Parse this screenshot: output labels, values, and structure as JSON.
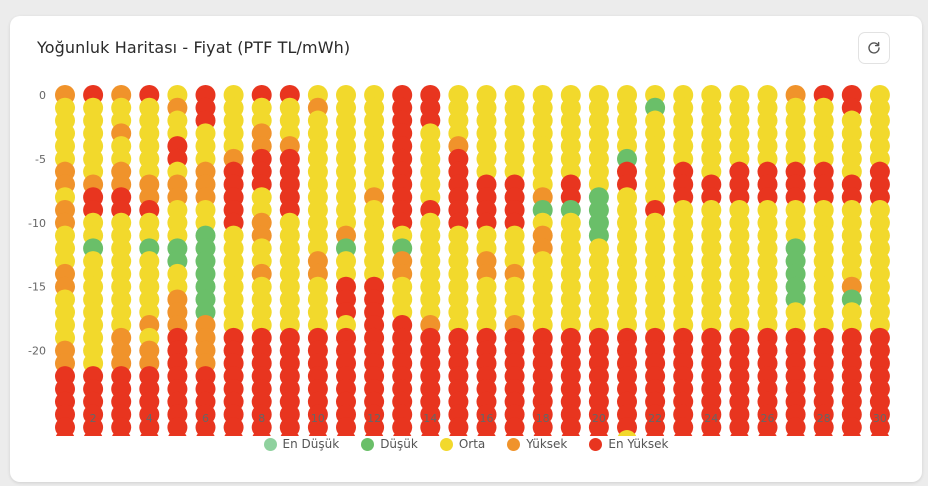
{
  "card": {
    "title": "Yoğunluk Haritası - Fiyat (PTF TL/mWh)",
    "refresh_icon": "refresh-icon"
  },
  "legend": [
    {
      "label": "En Düşük",
      "color": "#8fd19e"
    },
    {
      "label": "Düşük",
      "color": "#6abf69"
    },
    {
      "label": "Orta",
      "color": "#f2d92c"
    },
    {
      "label": "Yüksek",
      "color": "#f0932b"
    },
    {
      "label": "En Yüksek",
      "color": "#e8351f"
    }
  ],
  "chart_data": {
    "type": "heatmap",
    "title": "Yoğunluk Haritası - Fiyat (PTF TL/mWh)",
    "x_ticks": [
      2,
      4,
      6,
      8,
      10,
      12,
      14,
      16,
      18,
      20,
      22,
      24,
      26,
      28,
      30
    ],
    "y_ticks": [
      0,
      -5,
      -10,
      -15,
      -20
    ],
    "x_range": [
      1,
      30
    ],
    "y_range": [
      -23,
      0
    ],
    "levels": [
      "En Düşük",
      "Düşük",
      "Orta",
      "Yüksek",
      "En Yüksek"
    ],
    "days": [
      [
        "Y",
        "O",
        "O",
        "O",
        "O",
        "O",
        "Y",
        "Y",
        "O",
        "Y",
        "Y",
        "O",
        "O",
        "O",
        "Y",
        "Y",
        "O",
        "O",
        "O",
        "O",
        "Y",
        "Y",
        "E",
        "E",
        "E",
        "E",
        "E",
        "E",
        "E",
        "O"
      ],
      [
        "E",
        "O",
        "O",
        "O",
        "O",
        "O",
        "O",
        "Y",
        "E",
        "E",
        "O",
        "O",
        "D",
        "O",
        "O",
        "O",
        "O",
        "O",
        "O",
        "O",
        "O",
        "O",
        "E",
        "E",
        "E",
        "E",
        "E",
        "E",
        "Y",
        "Y"
      ],
      [
        "Y",
        "O",
        "O",
        "Y",
        "O",
        "O",
        "Y",
        "Y",
        "E",
        "E",
        "O",
        "O",
        "O",
        "O",
        "O",
        "O",
        "O",
        "O",
        "O",
        "Y",
        "Y",
        "Y",
        "E",
        "E",
        "E",
        "E",
        "E",
        "E",
        "E",
        "Y"
      ],
      [
        "E",
        "O",
        "O",
        "O",
        "O",
        "O",
        "O",
        "Y",
        "Y",
        "E",
        "O",
        "O",
        "D",
        "O",
        "O",
        "O",
        "O",
        "O",
        "Y",
        "O",
        "Y",
        "Y",
        "E",
        "E",
        "E",
        "E",
        "E",
        "E",
        "E",
        "Y"
      ],
      [
        "O",
        "Y",
        "O",
        "O",
        "E",
        "E",
        "O",
        "Y",
        "Y",
        "O",
        "O",
        "O",
        "D",
        "D",
        "O",
        "O",
        "Y",
        "Y",
        "Y",
        "E",
        "E",
        "E",
        "E",
        "E",
        "E",
        "E",
        "E",
        "E",
        "O",
        "O"
      ],
      [
        "E",
        "E",
        "E",
        "O",
        "O",
        "O",
        "Y",
        "Y",
        "Y",
        "O",
        "O",
        "D",
        "D",
        "D",
        "D",
        "D",
        "D",
        "D",
        "Y",
        "Y",
        "Y",
        "Y",
        "E",
        "E",
        "E",
        "E",
        "E",
        "E",
        "E",
        "Y"
      ],
      [
        "O",
        "O",
        "O",
        "O",
        "O",
        "Y",
        "E",
        "E",
        "E",
        "E",
        "E",
        "O",
        "O",
        "O",
        "O",
        "O",
        "O",
        "O",
        "O",
        "E",
        "E",
        "E",
        "E",
        "E",
        "E",
        "E",
        "E",
        "E",
        "E",
        "O"
      ],
      [
        "E",
        "O",
        "O",
        "Y",
        "Y",
        "E",
        "E",
        "E",
        "O",
        "O",
        "Y",
        "Y",
        "O",
        "O",
        "Y",
        "O",
        "O",
        "O",
        "O",
        "E",
        "E",
        "E",
        "E",
        "E",
        "E",
        "E",
        "E",
        "E",
        "E",
        "O"
      ],
      [
        "E",
        "O",
        "O",
        "O",
        "Y",
        "E",
        "E",
        "E",
        "E",
        "E",
        "O",
        "O",
        "O",
        "O",
        "O",
        "O",
        "O",
        "O",
        "O",
        "E",
        "E",
        "E",
        "E",
        "E",
        "E",
        "E",
        "E",
        "E",
        "E",
        "O"
      ],
      [
        "O",
        "Y",
        "O",
        "O",
        "O",
        "O",
        "O",
        "O",
        "O",
        "O",
        "O",
        "O",
        "O",
        "Y",
        "Y",
        "O",
        "O",
        "O",
        "O",
        "E",
        "E",
        "E",
        "E",
        "E",
        "E",
        "E",
        "E",
        "E",
        "E",
        "Y"
      ],
      [
        "O",
        "O",
        "O",
        "O",
        "O",
        "O",
        "O",
        "O",
        "O",
        "O",
        "O",
        "Y",
        "D",
        "O",
        "O",
        "E",
        "E",
        "E",
        "O",
        "E",
        "E",
        "E",
        "E",
        "E",
        "E",
        "E",
        "E",
        "E",
        "E",
        "O"
      ],
      [
        "O",
        "O",
        "O",
        "O",
        "O",
        "O",
        "O",
        "O",
        "Y",
        "O",
        "O",
        "O",
        "O",
        "O",
        "O",
        "E",
        "E",
        "E",
        "E",
        "E",
        "E",
        "E",
        "E",
        "E",
        "E",
        "E",
        "E",
        "E",
        "E",
        "Y"
      ],
      [
        "E",
        "E",
        "E",
        "E",
        "E",
        "E",
        "E",
        "E",
        "E",
        "E",
        "E",
        "O",
        "D",
        "Y",
        "Y",
        "O",
        "O",
        "O",
        "E",
        "E",
        "E",
        "E",
        "E",
        "E",
        "E",
        "E",
        "E",
        "E",
        "E",
        "O"
      ],
      [
        "E",
        "E",
        "E",
        "O",
        "O",
        "O",
        "O",
        "O",
        "O",
        "E",
        "O",
        "O",
        "O",
        "O",
        "O",
        "O",
        "O",
        "O",
        "Y",
        "E",
        "E",
        "E",
        "E",
        "E",
        "E",
        "E",
        "E",
        "E",
        "E",
        "O"
      ],
      [
        "O",
        "O",
        "O",
        "O",
        "Y",
        "E",
        "E",
        "E",
        "E",
        "E",
        "E",
        "O",
        "O",
        "O",
        "O",
        "O",
        "O",
        "O",
        "O",
        "E",
        "E",
        "E",
        "E",
        "E",
        "E",
        "E",
        "E",
        "E",
        "E",
        "O"
      ],
      [
        "O",
        "O",
        "O",
        "O",
        "O",
        "O",
        "O",
        "E",
        "E",
        "E",
        "E",
        "O",
        "O",
        "Y",
        "Y",
        "O",
        "O",
        "O",
        "O",
        "E",
        "E",
        "E",
        "E",
        "E",
        "E",
        "E",
        "E",
        "E",
        "E",
        "Y"
      ],
      [
        "O",
        "O",
        "O",
        "O",
        "O",
        "O",
        "O",
        "E",
        "E",
        "E",
        "E",
        "O",
        "O",
        "O",
        "Y",
        "O",
        "O",
        "O",
        "Y",
        "E",
        "E",
        "E",
        "E",
        "E",
        "E",
        "E",
        "E",
        "E",
        "E",
        "O"
      ],
      [
        "O",
        "O",
        "O",
        "O",
        "O",
        "O",
        "O",
        "O",
        "Y",
        "D",
        "O",
        "Y",
        "Y",
        "O",
        "O",
        "O",
        "O",
        "O",
        "O",
        "E",
        "E",
        "E",
        "E",
        "E",
        "E",
        "E",
        "E",
        "E",
        "O",
        "O"
      ],
      [
        "O",
        "O",
        "O",
        "O",
        "O",
        "O",
        "O",
        "E",
        "E",
        "D",
        "O",
        "O",
        "O",
        "O",
        "O",
        "O",
        "O",
        "O",
        "O",
        "E",
        "E",
        "E",
        "E",
        "E",
        "E",
        "E",
        "E",
        "E",
        "E",
        "Y"
      ],
      [
        "O",
        "O",
        "O",
        "O",
        "O",
        "O",
        "O",
        "O",
        "D",
        "D",
        "D",
        "D",
        "O",
        "O",
        "O",
        "O",
        "O",
        "O",
        "O",
        "E",
        "E",
        "E",
        "E",
        "E",
        "E",
        "E",
        "E",
        "E",
        "O",
        "O"
      ],
      [
        "O",
        "O",
        "O",
        "O",
        "O",
        "D",
        "E",
        "E",
        "O",
        "O",
        "O",
        "O",
        "O",
        "O",
        "O",
        "O",
        "O",
        "O",
        "O",
        "E",
        "E",
        "E",
        "E",
        "E",
        "E",
        "E",
        "E",
        "O",
        "O",
        "Y"
      ],
      [
        "O",
        "D",
        "O",
        "O",
        "O",
        "O",
        "O",
        "O",
        "O",
        "E",
        "O",
        "O",
        "O",
        "O",
        "O",
        "O",
        "O",
        "O",
        "O",
        "E",
        "E",
        "E",
        "E",
        "E",
        "E",
        "E",
        "E",
        "E",
        "O",
        "Y"
      ],
      [
        "O",
        "O",
        "O",
        "O",
        "O",
        "O",
        "E",
        "E",
        "E",
        "O",
        "O",
        "O",
        "O",
        "O",
        "O",
        "O",
        "O",
        "O",
        "O",
        "E",
        "E",
        "E",
        "E",
        "E",
        "E",
        "E",
        "E",
        "E",
        "O",
        "Y"
      ],
      [
        "O",
        "O",
        "O",
        "O",
        "O",
        "O",
        "O",
        "E",
        "E",
        "O",
        "O",
        "O",
        "O",
        "O",
        "O",
        "O",
        "O",
        "O",
        "O",
        "E",
        "E",
        "E",
        "E",
        "E",
        "E",
        "E",
        "E",
        "E",
        "E",
        "O"
      ],
      [
        "O",
        "O",
        "O",
        "O",
        "O",
        "O",
        "E",
        "E",
        "E",
        "O",
        "O",
        "O",
        "O",
        "O",
        "O",
        "O",
        "O",
        "O",
        "O",
        "E",
        "E",
        "E",
        "E",
        "E",
        "E",
        "E",
        "E",
        "E",
        "O",
        "O"
      ],
      [
        "O",
        "O",
        "O",
        "O",
        "O",
        "O",
        "E",
        "E",
        "E",
        "O",
        "O",
        "O",
        "O",
        "O",
        "O",
        "O",
        "O",
        "O",
        "O",
        "E",
        "E",
        "E",
        "E",
        "E",
        "E",
        "E",
        "E",
        "E",
        "E",
        "O"
      ],
      [
        "Y",
        "O",
        "O",
        "O",
        "O",
        "O",
        "E",
        "E",
        "E",
        "O",
        "O",
        "O",
        "D",
        "D",
        "D",
        "D",
        "D",
        "O",
        "O",
        "E",
        "E",
        "E",
        "E",
        "E",
        "E",
        "E",
        "E",
        "E",
        "E",
        "O"
      ],
      [
        "E",
        "O",
        "O",
        "O",
        "O",
        "O",
        "E",
        "E",
        "E",
        "O",
        "O",
        "O",
        "O",
        "O",
        "O",
        "O",
        "O",
        "O",
        "O",
        "E",
        "E",
        "E",
        "E",
        "E",
        "E",
        "E",
        "E",
        "E",
        "O",
        "O"
      ],
      [
        "E",
        "E",
        "O",
        "O",
        "O",
        "O",
        "O",
        "E",
        "E",
        "O",
        "O",
        "O",
        "O",
        "O",
        "O",
        "Y",
        "D",
        "O",
        "O",
        "E",
        "E",
        "E",
        "E",
        "E",
        "E",
        "E",
        "E",
        "E",
        "O",
        "Y"
      ],
      [
        "O",
        "O",
        "O",
        "O",
        "O",
        "O",
        "E",
        "E",
        "E",
        "O",
        "O",
        "O",
        "O",
        "O",
        "O",
        "O",
        "O",
        "O",
        "O",
        "E",
        "E",
        "E",
        "E",
        "E",
        "E",
        "E",
        "E",
        "E",
        "O",
        "Y"
      ]
    ]
  }
}
